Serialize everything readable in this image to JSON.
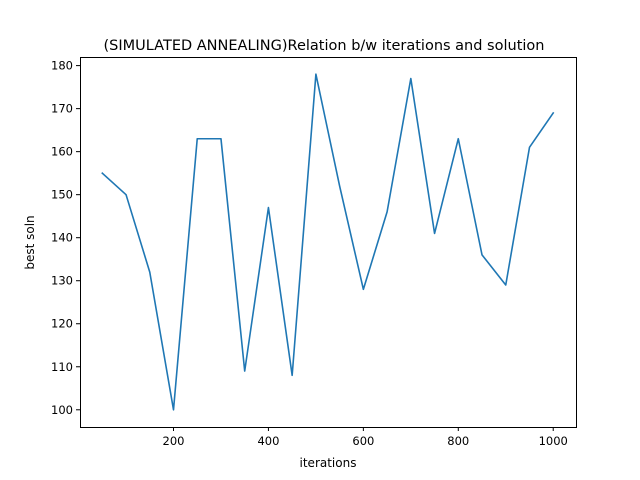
{
  "chart_data": {
    "type": "line",
    "title": "(SIMULATED ANNEALING)Relation b/w iterations and solution",
    "xlabel": "iterations",
    "ylabel": "best soln",
    "xlim": [
      3,
      1048
    ],
    "ylim": [
      96,
      182
    ],
    "xticks": [
      200,
      400,
      600,
      800,
      1000
    ],
    "yticks": [
      100,
      110,
      120,
      130,
      140,
      150,
      160,
      170,
      180
    ],
    "grid": false,
    "series": [
      {
        "color": "#1f77b4",
        "x": [
          50,
          100,
          150,
          200,
          250,
          300,
          350,
          400,
          450,
          500,
          550,
          600,
          650,
          700,
          750,
          800,
          850,
          900,
          950,
          1000
        ],
        "y": [
          155,
          150,
          132,
          100,
          163,
          163,
          109,
          147,
          108,
          178,
          152,
          128,
          146,
          177,
          141,
          163,
          136,
          129,
          161,
          169
        ]
      }
    ]
  }
}
